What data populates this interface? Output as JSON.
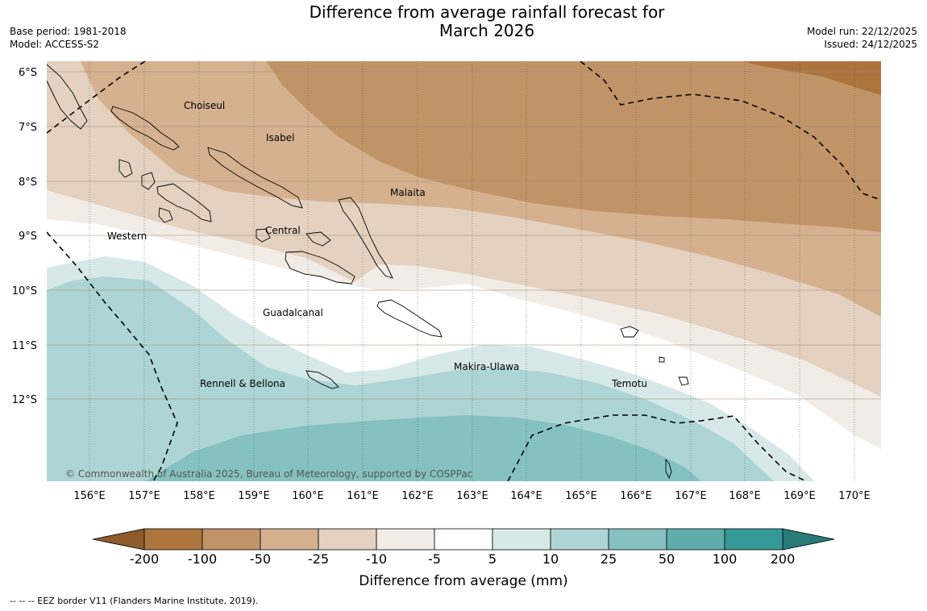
{
  "title": {
    "line1": "Difference from average rainfall forecast for",
    "line2": "March 2026"
  },
  "meta_left": {
    "base_period": "Base period: 1981-2018",
    "model": "Model: ACCESS-S2"
  },
  "meta_right": {
    "model_run": "Model run: 22/12/2025",
    "issued": "Issued: 24/12/2025"
  },
  "lat_labels": [
    "6°S",
    "7°S",
    "8°S",
    "9°S",
    "10°S",
    "11°S",
    "12°S"
  ],
  "lon_labels": [
    "156°E",
    "157°E",
    "158°E",
    "159°E",
    "160°E",
    "161°E",
    "162°E",
    "163°E",
    "164°E",
    "165°E",
    "166°E",
    "167°E",
    "168°E",
    "169°E",
    "170°E"
  ],
  "regions": {
    "choiseul": "Choiseul",
    "isabel": "Isabel",
    "malaita": "Malaita",
    "central": "Central",
    "western": "Western",
    "guadalcanal": "Guadalcanal",
    "makira": "Makira-Ulawa",
    "rennell": "Rennell & Bellona",
    "temotu": "Temotu"
  },
  "copyright": "© Commonwealth of Australia 2025, Bureau of Meteorology, supported by COSPPac",
  "colorbar": {
    "ticks": [
      "-200",
      "-100",
      "-50",
      "-25",
      "-10",
      "-5",
      "5",
      "10",
      "25",
      "50",
      "100",
      "200"
    ],
    "colors": [
      "#ad753e",
      "#c19468",
      "#d5b190",
      "#e4d1bf",
      "#f2ece6",
      "#ffffff",
      "#d6e9e8",
      "#aed5d5",
      "#85c1c1",
      "#5eacab",
      "#359998"
    ],
    "under_color": "#8c5a2b",
    "over_color": "#2a7a79",
    "title": "Difference from average (mm)"
  },
  "footnote": "--  --  -- EEZ border V11 (Flanders Marine Institute, 2019)."
}
